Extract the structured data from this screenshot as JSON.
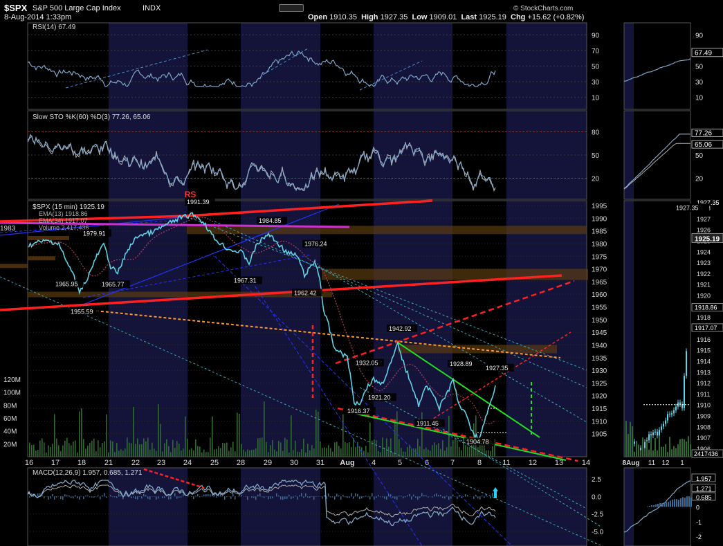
{
  "header": {
    "symbol": "$SPX",
    "name": "S&P 500 Large Cap Index",
    "exchange": "INDX",
    "date": "8-Aug-2014 1:33pm",
    "open_label": "Open",
    "open": "1910.35",
    "high_label": "High",
    "high": "1927.35",
    "low_label": "Low",
    "low": "1909.01",
    "last_label": "Last",
    "last": "1925.19",
    "chg_label": "Chg",
    "chg": "+15.62 (+0.82%)",
    "credit": "© StockCharts.com"
  },
  "colors": {
    "bg": "#000000",
    "shade": "#14143a",
    "grid": "#3a3a3a",
    "price": "#5fd3e6",
    "red": "#ff2020",
    "blue": "#2233ff",
    "cyan_dash": "#3aaab8",
    "orange": "#ff9a2a",
    "green": "#22dd22",
    "magenta": "#cc33cc",
    "band": "#5a3a10",
    "osc": "#7fa6c8"
  },
  "chart_data": [
    {
      "id": "rsi",
      "type": "line",
      "title": "RSI(14) 67.49",
      "ylim": [
        0,
        100
      ],
      "y_ticks": [
        "90",
        "70",
        "50",
        "30",
        "10"
      ],
      "last": "67.49"
    },
    {
      "id": "sto",
      "type": "line",
      "title": "Slow STO %K(60) %D(3)",
      "title_values": "77.26, 65.06",
      "ylim": [
        0,
        100
      ],
      "y_ticks": [
        "80",
        "50",
        "20"
      ],
      "last_k": "77.26",
      "last_d": "65.06"
    },
    {
      "id": "price",
      "type": "line",
      "title": "$SPX (15 min) 1925.19",
      "legend": [
        "EMA(13) 1918.86",
        "EMA(34) 1917.07",
        "Volume 2,417,436"
      ],
      "ylim": [
        1900,
        1995
      ],
      "y_ticks": [
        "1995",
        "1990",
        "1985",
        "1980",
        "1975",
        "1970",
        "1965",
        "1960",
        "1955",
        "1950",
        "1945",
        "1940",
        "1935",
        "1930",
        "1925",
        "1920",
        "1915",
        "1910",
        "1905"
      ],
      "x_ticks": [
        "16",
        "17",
        "18",
        "21",
        "22",
        "23",
        "24",
        "25",
        "28",
        "29",
        "30",
        "31",
        "Aug",
        "4",
        "5",
        "6",
        "7",
        "8",
        "11",
        "12",
        "13",
        "14"
      ],
      "volume_ticks": [
        "120M",
        "100M",
        "80M",
        "60M",
        "40M",
        "20M"
      ],
      "labels": [
        {
          "text": "1991.39",
          "x": "24",
          "y": 1991.39
        },
        {
          "text": "1984.85",
          "x": "29",
          "y": 1984.85
        },
        {
          "text": "1979.91",
          "x": "21",
          "y": 1979.91
        },
        {
          "text": "1976.24",
          "x": "31",
          "y": 1976.24
        },
        {
          "text": "1965.95",
          "x": "17",
          "y": 1965.95
        },
        {
          "text": "1965.77",
          "x": "21",
          "y": 1965.77
        },
        {
          "text": "1967.31",
          "x": "28",
          "y": 1967.31
        },
        {
          "text": "1962.42",
          "x": "30",
          "y": 1962.42
        },
        {
          "text": "1955.59",
          "x": "18",
          "y": 1955.59
        },
        {
          "text": "1942.92",
          "x": "5",
          "y": 1942.92
        },
        {
          "text": "1932.05",
          "x": "4",
          "y": 1932.05
        },
        {
          "text": "1928.89",
          "x": "7",
          "y": 1928.89
        },
        {
          "text": "1927.35",
          "x": "8",
          "y": 1927.35
        },
        {
          "text": "1921.20",
          "x": "4",
          "y": 1921.2
        },
        {
          "text": "1916.37",
          "x": "Aug",
          "y": 1916.37
        },
        {
          "text": "1911.45",
          "x": "6",
          "y": 1911.45
        },
        {
          "text": "1904.78",
          "x": "8",
          "y": 1904.78
        }
      ],
      "annotation": "RS",
      "last": "1925.19",
      "partial_label": "1983"
    },
    {
      "id": "macd",
      "type": "line",
      "title": "MACD(12,26,9) 1.957, 0.685, 1.271",
      "ylim": [
        -5,
        3
      ],
      "y_ticks": [
        "2.5",
        "0.0",
        "-2.5",
        "-5.0"
      ]
    },
    {
      "id": "zoom",
      "type": "line",
      "rsi_ticks": [
        "90",
        "70",
        "50",
        "30",
        "10"
      ],
      "rsi_last": "67.49",
      "sto_ticks": [
        "80",
        "50",
        "20"
      ],
      "sto_last_k": "77.26",
      "sto_last_d": "65.06",
      "price_ticks": [
        "1928",
        "1927",
        "1926",
        "1925",
        "1924",
        "1923",
        "1922",
        "1921",
        "1920",
        "1919",
        "1918",
        "1917",
        "1916",
        "1915",
        "1914",
        "1913",
        "1912",
        "1911",
        "1910",
        "1909",
        "1908",
        "1907",
        "1906"
      ],
      "price_high": "1927.35",
      "price_last": "1925.19",
      "ema13": "1918.86",
      "ema34": "1917.07",
      "volume": "2417436",
      "x_ticks": [
        "8Aug",
        "11",
        "12",
        "1"
      ],
      "macd_ticks": [
        "1.957",
        "1.271",
        "0.685",
        "0",
        "-1",
        "-2"
      ]
    }
  ]
}
